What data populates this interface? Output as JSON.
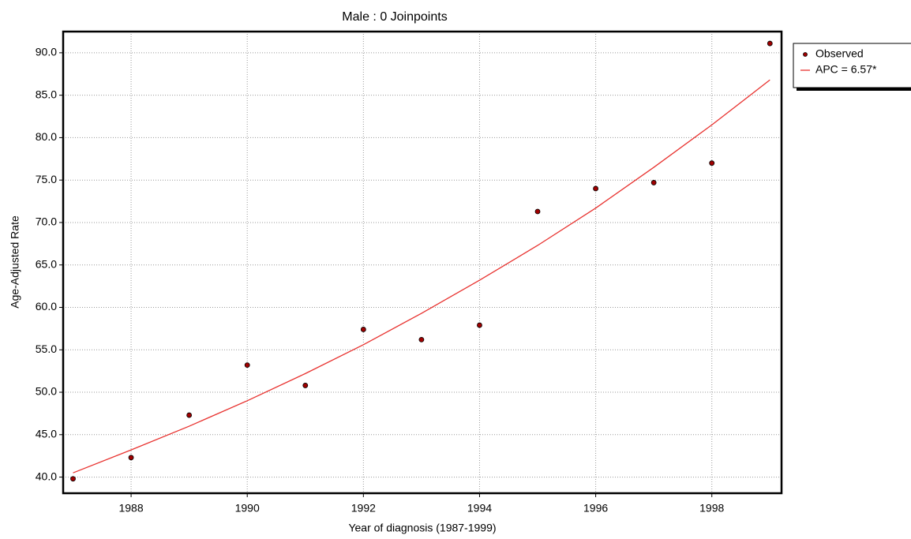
{
  "chart_data": {
    "type": "scatter",
    "title": "Male : 0 Joinpoints",
    "x_label": "Year of diagnosis (1987-1999)",
    "y_label": "Age-Adjusted Rate",
    "x": [
      1987,
      1988,
      1989,
      1990,
      1991,
      1992,
      1993,
      1994,
      1995,
      1996,
      1997,
      1998,
      1999
    ],
    "series": [
      {
        "name": "Observed",
        "type": "scatter",
        "color": "#a00000",
        "values": [
          39.8,
          42.3,
          47.3,
          53.2,
          50.8,
          57.4,
          56.2,
          57.9,
          71.3,
          74.0,
          74.7,
          77.0,
          91.1
        ]
      },
      {
        "name": "APC = 6.57*",
        "type": "line",
        "color": "#e8322f",
        "values": [
          40.5,
          43.2,
          46.0,
          49.0,
          52.2,
          55.6,
          59.3,
          63.2,
          67.3,
          71.7,
          76.5,
          81.5,
          86.8
        ]
      }
    ],
    "xlim": [
      1986.83,
      1999.2
    ],
    "ylim": [
      38.1,
      92.5
    ],
    "xticks": [
      1988,
      1990,
      1992,
      1994,
      1996,
      1998
    ],
    "yticks": [
      {
        "value": 40,
        "label": "40.0"
      },
      {
        "value": 45,
        "label": "45.0"
      },
      {
        "value": 50,
        "label": "50.0"
      },
      {
        "value": 55,
        "label": "55.0"
      },
      {
        "value": 60,
        "label": "60.0"
      },
      {
        "value": 65,
        "label": "65.0"
      },
      {
        "value": 70,
        "label": "70.0"
      },
      {
        "value": 75,
        "label": "75.0"
      },
      {
        "value": 80,
        "label": "80.0"
      },
      {
        "value": 85,
        "label": "85.0"
      },
      {
        "value": 90,
        "label": "90.0"
      }
    ],
    "grid": true,
    "legend": "right"
  }
}
